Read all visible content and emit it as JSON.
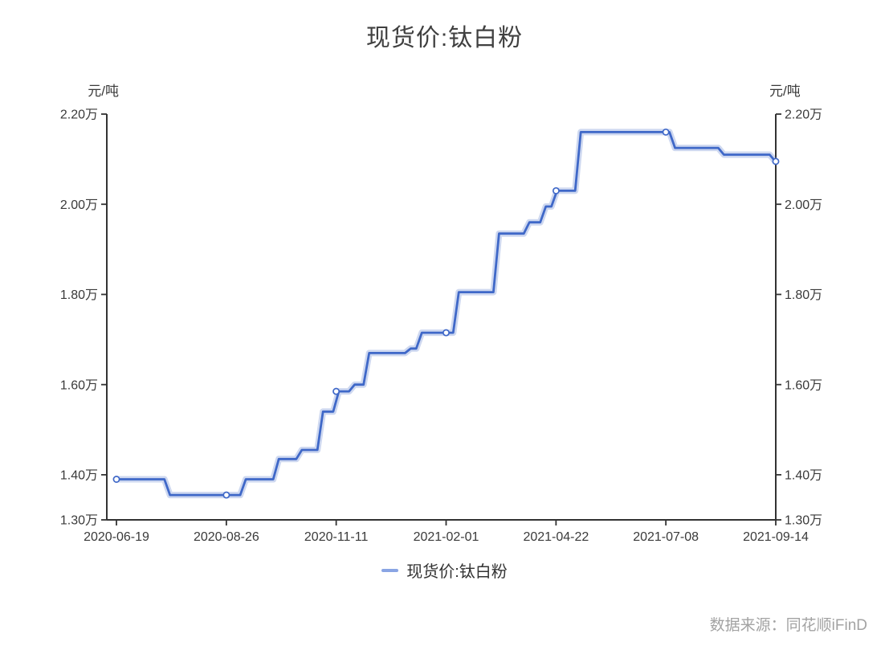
{
  "chart_data": {
    "type": "line",
    "line_style": "step",
    "title": "现货价:钛白粉",
    "source": "数据来源：同花顺iFinD",
    "legend_position": "bottom",
    "grid": false,
    "y_axis": {
      "unit": "元/吨",
      "min": 13000,
      "max": 22000,
      "sides": "both",
      "ticks": [
        {
          "value": 13000,
          "label": "1.30万"
        },
        {
          "value": 14000,
          "label": "1.40万"
        },
        {
          "value": 16000,
          "label": "1.60万"
        },
        {
          "value": 18000,
          "label": "1.80万"
        },
        {
          "value": 20000,
          "label": "2.00万"
        },
        {
          "value": 22000,
          "label": "2.20万"
        }
      ]
    },
    "x_axis": {
      "range": [
        "2020-06-19",
        "2021-09-14"
      ],
      "ticks": [
        {
          "t": 0,
          "label": "2020-06-19"
        },
        {
          "t": 0.1667,
          "label": "2020-08-26"
        },
        {
          "t": 0.3333,
          "label": "2020-11-11"
        },
        {
          "t": 0.5,
          "label": "2021-02-01"
        },
        {
          "t": 0.6667,
          "label": "2021-04-22"
        },
        {
          "t": 0.8333,
          "label": "2021-07-08"
        },
        {
          "t": 1,
          "label": "2021-09-14"
        }
      ]
    },
    "series": [
      {
        "name": "现货价:钛白粉",
        "color": "#3f68c8",
        "glow_color": "rgba(92,126,205,0.30)",
        "legend_marker_color": "#8aa5e4",
        "points": [
          {
            "t": 0.0,
            "date": "2020-06-19",
            "value": 13900
          },
          {
            "t": 0.077,
            "date": "2020-07-20",
            "value": 13550
          },
          {
            "t": 0.192,
            "date": "2020-09-06",
            "value": 13900
          },
          {
            "t": 0.242,
            "date": "2020-09-29",
            "value": 14350
          },
          {
            "t": 0.277,
            "date": "2020-10-15",
            "value": 14550
          },
          {
            "t": 0.309,
            "date": "2020-10-30",
            "value": 15400
          },
          {
            "t": 0.333,
            "date": "2020-11-10",
            "value": 15850
          },
          {
            "t": 0.357,
            "date": "2020-11-22",
            "value": 16000
          },
          {
            "t": 0.379,
            "date": "2020-12-03",
            "value": 16700
          },
          {
            "t": 0.442,
            "date": "2021-01-03",
            "value": 16800
          },
          {
            "t": 0.459,
            "date": "2021-01-11",
            "value": 17150
          },
          {
            "t": 0.515,
            "date": "2021-02-07",
            "value": 18050
          },
          {
            "t": 0.576,
            "date": "2021-03-09",
            "value": 19350
          },
          {
            "t": 0.622,
            "date": "2021-03-31",
            "value": 19600
          },
          {
            "t": 0.647,
            "date": "2021-04-12",
            "value": 19950
          },
          {
            "t": 0.664,
            "date": "2021-04-20",
            "value": 20300
          },
          {
            "t": 0.7,
            "date": "2021-05-07",
            "value": 21600
          },
          {
            "t": 0.843,
            "date": "2021-07-11",
            "value": 21250
          },
          {
            "t": 0.917,
            "date": "2021-08-11",
            "value": 21100
          },
          {
            "t": 0.995,
            "date": "2021-09-13",
            "value": 20950
          }
        ],
        "markers": [
          {
            "t": 0,
            "date": "2020-06-19",
            "value": 13900
          },
          {
            "t": 0.1667,
            "date": "2020-08-26",
            "value": 13550
          },
          {
            "t": 0.3333,
            "date": "2020-11-11",
            "value": 15850
          },
          {
            "t": 0.5,
            "date": "2021-02-01",
            "value": 17150
          },
          {
            "t": 0.6667,
            "date": "2021-04-22",
            "value": 20300
          },
          {
            "t": 0.8333,
            "date": "2021-07-08",
            "value": 21600
          },
          {
            "t": 1,
            "date": "2021-09-14",
            "value": 20950
          }
        ]
      }
    ],
    "style": {
      "axis_color": "#333333",
      "label_color": "#3a3a3a",
      "title_color": "#404040",
      "source_color": "#a3a3a3",
      "background": "#ffffff"
    }
  }
}
